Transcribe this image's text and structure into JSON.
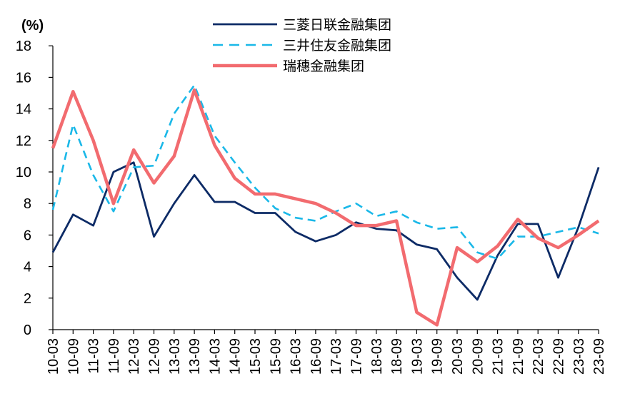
{
  "chart_data": {
    "type": "line",
    "unit_label": "(%)",
    "title": "",
    "xlabel": "",
    "ylabel": "",
    "ylim": [
      0,
      18
    ],
    "yticks": [
      0,
      2,
      4,
      6,
      8,
      10,
      12,
      14,
      16,
      18
    ],
    "grid": false,
    "legend_position": "top-center",
    "categories": [
      "10-03",
      "10-09",
      "11-03",
      "11-09",
      "12-03",
      "12-09",
      "13-03",
      "13-09",
      "14-03",
      "14-09",
      "15-03",
      "15-09",
      "16-03",
      "16-09",
      "17-03",
      "17-09",
      "18-03",
      "18-09",
      "19-03",
      "19-09",
      "20-03",
      "20-09",
      "21-03",
      "21-09",
      "22-03",
      "22-09",
      "23-03",
      "23-09"
    ],
    "series": [
      {
        "name": "三菱日联金融集团",
        "color": "#0d2b66",
        "style": "solid",
        "values": [
          4.9,
          7.3,
          6.6,
          10.0,
          10.6,
          5.9,
          8.0,
          9.8,
          8.1,
          8.1,
          7.4,
          7.4,
          6.2,
          5.6,
          6.0,
          6.8,
          6.4,
          6.3,
          5.4,
          5.1,
          3.3,
          1.9,
          4.7,
          6.7,
          6.7,
          3.3,
          6.5,
          10.3
        ]
      },
      {
        "name": "三井住友金融集团",
        "color": "#1ab8e8",
        "style": "dashed",
        "values": [
          7.6,
          13.0,
          9.8,
          7.5,
          10.3,
          10.4,
          13.7,
          15.5,
          12.3,
          10.6,
          9.0,
          7.7,
          7.1,
          6.9,
          7.5,
          8.0,
          7.2,
          7.5,
          6.8,
          6.4,
          6.5,
          4.9,
          4.5,
          5.9,
          5.9,
          6.2,
          6.5,
          6.1
        ]
      },
      {
        "name": "瑞穗金融集团",
        "color": "#f26b6f",
        "style": "solid-thick",
        "values": [
          11.5,
          15.1,
          12.0,
          8.0,
          11.4,
          9.3,
          11.0,
          15.2,
          11.7,
          9.6,
          8.6,
          8.6,
          8.3,
          8.0,
          7.4,
          6.6,
          6.6,
          6.9,
          1.1,
          0.3,
          5.2,
          4.3,
          5.3,
          7.0,
          5.8,
          5.2,
          6.0,
          6.9
        ]
      }
    ]
  }
}
